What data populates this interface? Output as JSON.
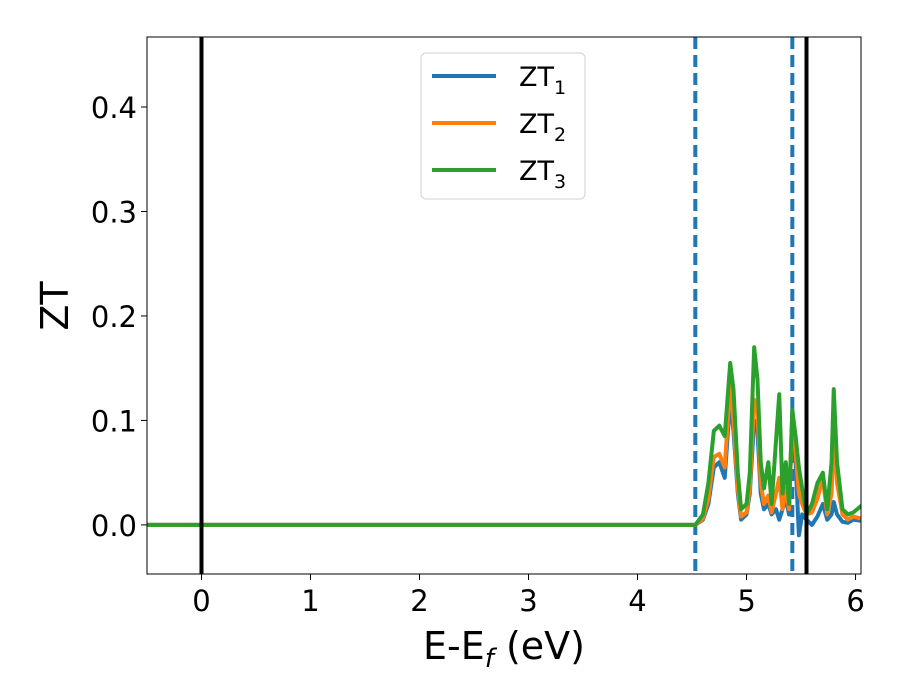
{
  "chart_data": {
    "type": "line",
    "xlabel": "E-E",
    "xlabel_sub": "f",
    "xlabel_unit": " (eV)",
    "ylabel": "ZT",
    "xlim": [
      -0.5,
      6.05
    ],
    "ylim": [
      -0.047,
      0.467
    ],
    "xticks": [
      0,
      1,
      2,
      3,
      4,
      5,
      6
    ],
    "xtick_labels": [
      "0",
      "1",
      "2",
      "3",
      "4",
      "5",
      "6"
    ],
    "yticks": [
      0.0,
      0.1,
      0.2,
      0.3,
      0.4
    ],
    "ytick_labels": [
      "0.0",
      "0.1",
      "0.2",
      "0.3",
      "0.4"
    ],
    "grid": false,
    "legend_position": "upper-center",
    "solid_vlines": [
      0.0,
      5.55
    ],
    "dashed_vlines": [
      4.53,
      5.42
    ],
    "vline_colors": {
      "solid": "#000000",
      "dashed": "#1f77b4"
    },
    "series": [
      {
        "name": "ZT",
        "name_sub": "1",
        "color": "#1f77b4",
        "points": [
          [
            -0.5,
            0
          ],
          [
            4.53,
            0
          ],
          [
            4.6,
            0.005
          ],
          [
            4.65,
            0.02
          ],
          [
            4.7,
            0.055
          ],
          [
            4.75,
            0.06
          ],
          [
            4.8,
            0.045
          ],
          [
            4.85,
            0.12
          ],
          [
            4.88,
            0.09
          ],
          [
            4.92,
            0.03
          ],
          [
            4.95,
            0.005
          ],
          [
            5.0,
            0.01
          ],
          [
            5.03,
            0.03
          ],
          [
            5.07,
            0.1
          ],
          [
            5.1,
            0.09
          ],
          [
            5.13,
            0.03
          ],
          [
            5.16,
            0.015
          ],
          [
            5.2,
            0.02
          ],
          [
            5.23,
            0.01
          ],
          [
            5.27,
            0.015
          ],
          [
            5.3,
            0.005
          ],
          [
            5.33,
            0.015
          ],
          [
            5.36,
            0.025
          ],
          [
            5.39,
            0.01
          ],
          [
            5.42,
            0.11
          ],
          [
            5.45,
            0.06
          ],
          [
            5.48,
            -0.01
          ],
          [
            5.51,
            0.01
          ],
          [
            5.55,
            0.005
          ],
          [
            5.6,
            0.0
          ],
          [
            5.65,
            0.008
          ],
          [
            5.7,
            0.02
          ],
          [
            5.74,
            0.005
          ],
          [
            5.78,
            0.01
          ],
          [
            5.8,
            0.022
          ],
          [
            5.83,
            0.01
          ],
          [
            5.88,
            0.003
          ],
          [
            5.93,
            0.002
          ],
          [
            5.98,
            0.005
          ],
          [
            6.05,
            0.004
          ]
        ]
      },
      {
        "name": "ZT",
        "name_sub": "2",
        "color": "#ff7f0e",
        "points": [
          [
            -0.5,
            0
          ],
          [
            4.53,
            0
          ],
          [
            4.6,
            0.006
          ],
          [
            4.65,
            0.025
          ],
          [
            4.7,
            0.065
          ],
          [
            4.75,
            0.068
          ],
          [
            4.8,
            0.055
          ],
          [
            4.85,
            0.135
          ],
          [
            4.88,
            0.1
          ],
          [
            4.92,
            0.035
          ],
          [
            4.95,
            0.008
          ],
          [
            5.0,
            0.012
          ],
          [
            5.03,
            0.035
          ],
          [
            5.07,
            0.12
          ],
          [
            5.1,
            0.11
          ],
          [
            5.13,
            0.04
          ],
          [
            5.16,
            0.02
          ],
          [
            5.2,
            0.028
          ],
          [
            5.23,
            0.012
          ],
          [
            5.27,
            0.03
          ],
          [
            5.3,
            0.045
          ],
          [
            5.33,
            0.015
          ],
          [
            5.36,
            0.035
          ],
          [
            5.39,
            0.015
          ],
          [
            5.42,
            0.105
          ],
          [
            5.45,
            0.07
          ],
          [
            5.48,
            0.03
          ],
          [
            5.51,
            0.02
          ],
          [
            5.55,
            0.01
          ],
          [
            5.6,
            0.012
          ],
          [
            5.65,
            0.025
          ],
          [
            5.7,
            0.045
          ],
          [
            5.74,
            0.01
          ],
          [
            5.78,
            0.03
          ],
          [
            5.8,
            0.085
          ],
          [
            5.83,
            0.04
          ],
          [
            5.88,
            0.01
          ],
          [
            5.93,
            0.005
          ],
          [
            5.98,
            0.008
          ],
          [
            6.05,
            0.006
          ]
        ]
      },
      {
        "name": "ZT",
        "name_sub": "3",
        "color": "#2ca02c",
        "points": [
          [
            -0.5,
            0
          ],
          [
            4.53,
            0
          ],
          [
            4.6,
            0.01
          ],
          [
            4.65,
            0.04
          ],
          [
            4.7,
            0.09
          ],
          [
            4.75,
            0.095
          ],
          [
            4.8,
            0.085
          ],
          [
            4.85,
            0.155
          ],
          [
            4.88,
            0.13
          ],
          [
            4.92,
            0.05
          ],
          [
            4.95,
            0.015
          ],
          [
            5.0,
            0.02
          ],
          [
            5.03,
            0.05
          ],
          [
            5.07,
            0.17
          ],
          [
            5.1,
            0.14
          ],
          [
            5.13,
            0.06
          ],
          [
            5.16,
            0.035
          ],
          [
            5.2,
            0.06
          ],
          [
            5.23,
            0.02
          ],
          [
            5.27,
            0.08
          ],
          [
            5.3,
            0.125
          ],
          [
            5.33,
            0.03
          ],
          [
            5.36,
            0.06
          ],
          [
            5.39,
            0.02
          ],
          [
            5.42,
            0.11
          ],
          [
            5.45,
            0.085
          ],
          [
            5.48,
            0.055
          ],
          [
            5.51,
            0.035
          ],
          [
            5.55,
            0.01
          ],
          [
            5.6,
            0.02
          ],
          [
            5.65,
            0.04
          ],
          [
            5.7,
            0.05
          ],
          [
            5.74,
            0.015
          ],
          [
            5.78,
            0.06
          ],
          [
            5.8,
            0.13
          ],
          [
            5.83,
            0.06
          ],
          [
            5.88,
            0.015
          ],
          [
            5.93,
            0.01
          ],
          [
            5.98,
            0.012
          ],
          [
            6.05,
            0.018
          ]
        ]
      }
    ]
  }
}
